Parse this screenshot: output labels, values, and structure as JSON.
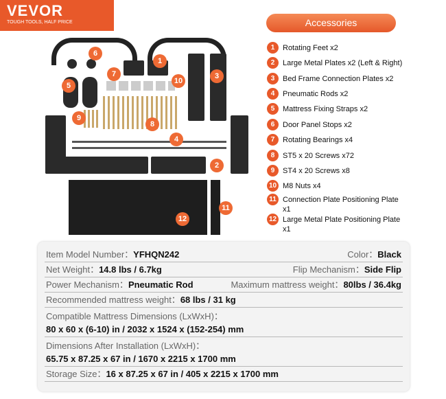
{
  "logo": {
    "brand": "VEVOR",
    "tagline": "TOUGH TOOLS, HALF PRICE",
    "color": "#e8592a"
  },
  "accessories": {
    "title": "Accessories",
    "items": [
      {
        "n": "1",
        "label": "Rotating Feet x2"
      },
      {
        "n": "2",
        "label": "Large Metal Plates x2 (Left & Right)"
      },
      {
        "n": "3",
        "label": "Bed Frame Connection Plates x2"
      },
      {
        "n": "4",
        "label": "Pneumatic Rods x2"
      },
      {
        "n": "5",
        "label": "Mattress Fixing Straps x2"
      },
      {
        "n": "6",
        "label": "Door Panel Stops x2"
      },
      {
        "n": "7",
        "label": "Rotating Bearings x4"
      },
      {
        "n": "8",
        "label": "ST5 x 20 Screws x72"
      },
      {
        "n": "9",
        "label": "ST4 x 20 Screws x8"
      },
      {
        "n": "10",
        "label": "M8 Nuts x4"
      },
      {
        "n": "11",
        "label": "Connection Plate Positioning Plate x1"
      },
      {
        "n": "12",
        "label": "Large Metal Plate Positioning Plate x1"
      }
    ]
  },
  "specs": {
    "model_label": "Item Model Number：",
    "model": "YFHQN242",
    "color_label": "Color：",
    "color": "Black",
    "weight_label": "Net Weight：",
    "weight": "14.8 lbs / 6.7kg",
    "flip_label": "Flip Mechanism：",
    "flip": "Side Flip",
    "power_label": "Power Mechanism：",
    "power": "Pneumatic Rod",
    "max_label": "Maximum mattress weight：",
    "max": "80lbs / 36.4kg",
    "rec_label": "Recommended mattress weight：",
    "rec": "68 lbs / 31 kg",
    "compat_label": "Compatible Mattress Dimensions (LxWxH)：",
    "compat": "80 x 60 x (6-10) in / 2032 x 1524 x (152-254) mm",
    "install_label": "Dimensions After Installation (LxWxH)：",
    "install": "65.75 x 87.25 x 67 in / 1670 x 2215 x 1700 mm",
    "storage_label": "Storage Size：",
    "storage": "16 x 87.25 x 67 in / 405 x 2215 x 1700 mm"
  }
}
